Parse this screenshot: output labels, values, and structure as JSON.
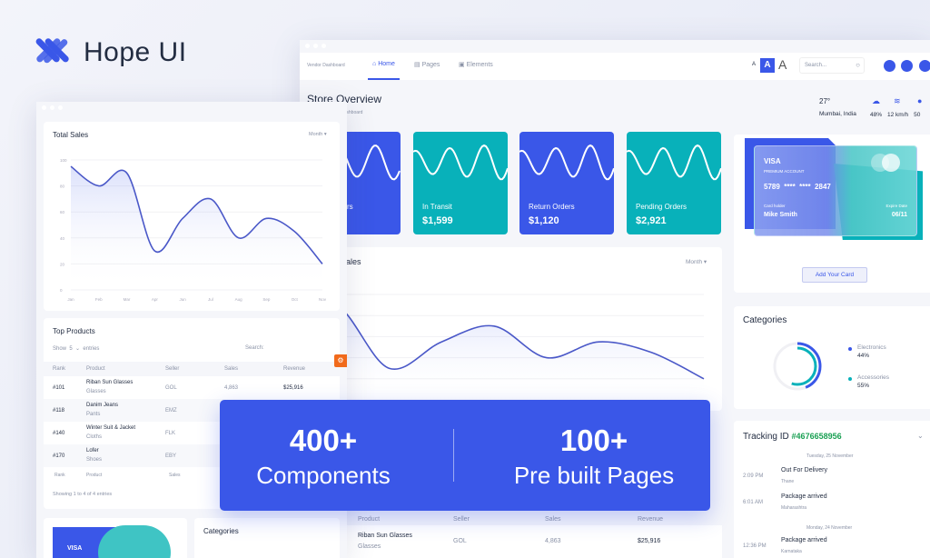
{
  "brand": {
    "name": "Hope UI",
    "logo_icon": "hope-ui-logo",
    "accent": "#3a57e8",
    "teal": "#08b1ba"
  },
  "back_window": {
    "nav": {
      "breadcrumb": "Vendor Dashboard",
      "items": [
        {
          "label": "Home",
          "icon": "home-icon",
          "active": true
        },
        {
          "label": "Pages",
          "icon": "pages-icon"
        },
        {
          "label": "Elements",
          "icon": "elements-icon"
        }
      ],
      "font_sizes": [
        "A",
        "A",
        "A"
      ],
      "search_placeholder": "Search..."
    },
    "header": {
      "title": "Store Overview",
      "subtitle": "Dashboard",
      "temperature": "27°",
      "location": "Mumbai, India",
      "weather": [
        {
          "icon": "cloud-icon",
          "value": "48%"
        },
        {
          "icon": "wind-icon",
          "value": "12 km/h"
        },
        {
          "icon": "drop-icon",
          "value": "50"
        }
      ]
    },
    "stats": [
      {
        "label": "rs",
        "color": "#3a57e8"
      },
      {
        "label": "In Transit",
        "value": "$1,599",
        "color": "#08b1ba"
      },
      {
        "label": "Return Orders",
        "value": "$1,120",
        "color": "#3a57e8"
      },
      {
        "label": "Pending Orders",
        "value": "$2,921",
        "color": "#08b1ba"
      }
    ],
    "sales": {
      "title": "ales",
      "filter": "Month"
    },
    "credit_card": {
      "brand": "VISA",
      "type": "PREMIUM ACCOUNT",
      "number": "5789  ****  ****  2847",
      "holder_label": "Card holder",
      "holder": "Mike Smith",
      "expiry_label": "Expire Date",
      "expiry": "06/11",
      "button": "Add Your Card"
    },
    "categories": {
      "title": "Categories",
      "items": [
        {
          "name": "Electronics",
          "value": "44%",
          "color": "#3a57e8",
          "percent": 44
        },
        {
          "name": "Accessories",
          "value": "55%",
          "color": "#08b1ba",
          "percent": 55
        }
      ]
    },
    "tracking": {
      "label": "Tracking ID",
      "id": "#4676658956",
      "events": [
        {
          "date": "Tuesday, 25 November"
        },
        {
          "time": "2:09 PM",
          "status": "Out For Delivery",
          "place": "Thane"
        },
        {
          "time": "6:01 AM",
          "status": "Package arrived",
          "place": "Maharashtra"
        },
        {
          "date": "Monday, 24 November"
        },
        {
          "time": "12:36 PM",
          "status": "Package arrived",
          "place": "Karnataka"
        }
      ]
    },
    "table": {
      "headers": [
        "Product",
        "Seller",
        "Sales",
        "Revenue"
      ],
      "row": {
        "product": "Riban Sun Glasses",
        "category": "Glasses",
        "seller": "GOL",
        "sales": "4,863",
        "revenue": "$25,916"
      }
    }
  },
  "front_window": {
    "total_sales": {
      "title": "Total Sales",
      "filter": "Month"
    },
    "top_products": {
      "title": "Top Products",
      "show": "Show",
      "entries_count": "5",
      "entries": "entries",
      "search": "Search:",
      "headers": [
        "Rank",
        "Product",
        "Seller",
        "Sales",
        "Revenue"
      ],
      "rows": [
        {
          "rank": "#101",
          "product": "Riban Sun Glasses",
          "category": "Glasses",
          "seller": "GOL",
          "sales": "4,863",
          "revenue": "$25,916"
        },
        {
          "rank": "#118",
          "product": "Danim Jeans",
          "category": "Pants",
          "seller": "EMZ"
        },
        {
          "rank": "#140",
          "product": "Winter Suit & Jacket",
          "category": "Cloths",
          "seller": "FLK"
        },
        {
          "rank": "#170",
          "product": "Lofer",
          "category": "Shoes",
          "seller": "EBY"
        }
      ],
      "footer_inputs": [
        "Rank",
        "Product",
        "Sales"
      ],
      "info": "Showing 1 to 4 of 4 entries"
    },
    "mini_card": {
      "brand": "VISA"
    },
    "categories_title": "Categories"
  },
  "banner": {
    "stat1": "400+",
    "label1": "Components",
    "stat2": "100+",
    "label2": "Pre built Pages"
  },
  "chart_data": {
    "type": "area",
    "x": [
      "Jan",
      "Feb",
      "Mar",
      "Apr",
      "Jun",
      "Jul",
      "Aug",
      "Sep",
      "Oct",
      "Nov"
    ],
    "values": [
      95,
      80,
      90,
      30,
      55,
      70,
      40,
      55,
      45,
      20
    ],
    "yticks": [
      0,
      20,
      40,
      60,
      80,
      100
    ],
    "ylim": [
      0,
      100
    ],
    "grid": true,
    "color": "#3a57e8"
  }
}
